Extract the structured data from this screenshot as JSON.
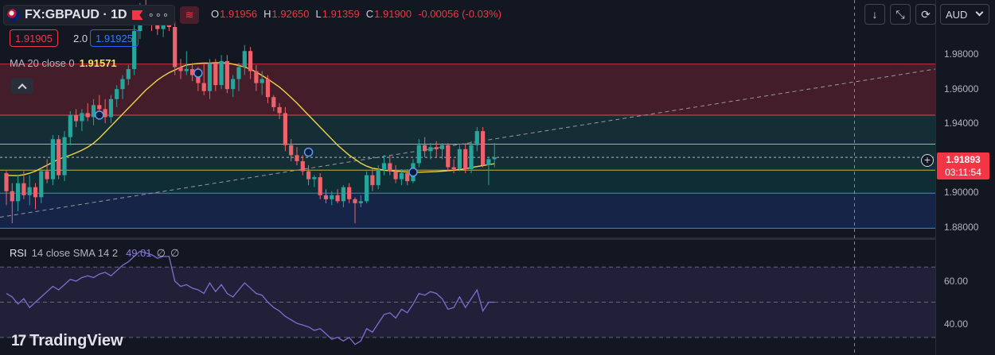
{
  "header": {
    "symbol": "FX:GBPAUD · 1D",
    "more": "∘∘∘",
    "wave": "≋",
    "ohlc": [
      {
        "key": "O",
        "value": "1.91956"
      },
      {
        "key": "H",
        "value": "1.92650"
      },
      {
        "key": "L",
        "value": "1.91359"
      },
      {
        "key": "C",
        "value": "1.91900"
      },
      {
        "key": "",
        "value": "-0.00056 (-0.03%)"
      }
    ]
  },
  "trade": {
    "sell": "1.91905",
    "spread": "2.0",
    "buy": "1.91925"
  },
  "ma_legend": {
    "label": "MA 20 close 0",
    "value": "1.91571"
  },
  "rsi_legend": {
    "title": "RSI",
    "params": "14 close SMA 14 2",
    "value": "49.01",
    "extra1": "∅",
    "extra2": "∅"
  },
  "toolbar": {
    "down": "↓",
    "fullscreen": "⤡",
    "screenshot": "⟳",
    "currency": "AUD"
  },
  "price_axis": {
    "ticks": [
      "1.98000",
      "1.96000",
      "1.94000",
      "1.90000",
      "1.88000"
    ],
    "last_price": "1.91893",
    "countdown": "03:11:54"
  },
  "rsi_axis": {
    "ticks": [
      "60.00",
      "40.00"
    ]
  },
  "logo": {
    "mark": "17",
    "text": "TradingView"
  },
  "colors": {
    "up": "#26a69a",
    "down": "#f0626b",
    "ma": "#f0d44a",
    "rsi": "#7e6fd1",
    "bg": "#131722"
  },
  "chart_data": {
    "type": "candlestick",
    "symbol": "FX:GBPAUD",
    "interval": "1D",
    "ylim": [
      1.8785,
      1.9975
    ],
    "candles": [
      [
        1.911,
        1.912,
        1.895,
        1.902
      ],
      [
        1.902,
        1.906,
        1.886,
        1.897
      ],
      [
        1.897,
        1.91,
        1.892,
        1.906
      ],
      [
        1.906,
        1.912,
        1.898,
        1.9
      ],
      [
        1.9,
        1.91,
        1.895,
        1.904
      ],
      [
        1.904,
        1.906,
        1.893,
        1.899
      ],
      [
        1.899,
        1.914,
        1.896,
        1.912
      ],
      [
        1.912,
        1.918,
        1.906,
        1.908
      ],
      [
        1.908,
        1.93,
        1.905,
        1.928
      ],
      [
        1.928,
        1.93,
        1.908,
        1.91
      ],
      [
        1.91,
        1.932,
        1.907,
        1.929
      ],
      [
        1.929,
        1.942,
        1.925,
        1.94
      ],
      [
        1.94,
        1.943,
        1.934,
        1.937
      ],
      [
        1.937,
        1.943,
        1.932,
        1.941
      ],
      [
        1.941,
        1.946,
        1.937,
        1.939
      ],
      [
        1.939,
        1.948,
        1.935,
        1.945
      ],
      [
        1.945,
        1.95,
        1.94,
        1.943
      ],
      [
        1.943,
        1.948,
        1.936,
        1.939
      ],
      [
        1.939,
        1.95,
        1.936,
        1.948
      ],
      [
        1.948,
        1.955,
        1.944,
        1.953
      ],
      [
        1.953,
        1.96,
        1.948,
        1.958
      ],
      [
        1.958,
        1.965,
        1.955,
        1.963
      ],
      [
        1.963,
        1.985,
        1.96,
        1.982
      ],
      [
        1.982,
        1.996,
        1.978,
        1.992
      ],
      [
        1.992,
        1.998,
        1.986,
        1.989
      ],
      [
        1.989,
        1.994,
        1.982,
        1.986
      ],
      [
        1.986,
        1.994,
        1.98,
        1.983
      ],
      [
        1.983,
        1.992,
        1.979,
        1.989
      ],
      [
        1.989,
        1.993,
        1.982,
        1.984
      ],
      [
        1.984,
        1.987,
        1.96,
        1.964
      ],
      [
        1.964,
        1.968,
        1.958,
        1.962
      ],
      [
        1.962,
        1.972,
        1.96,
        1.963
      ],
      [
        1.963,
        1.966,
        1.957,
        1.96
      ],
      [
        1.96,
        1.964,
        1.952,
        1.956
      ],
      [
        1.956,
        1.966,
        1.95,
        1.952
      ],
      [
        1.952,
        1.968,
        1.948,
        1.966
      ],
      [
        1.966,
        1.968,
        1.952,
        1.955
      ],
      [
        1.955,
        1.97,
        1.953,
        1.967
      ],
      [
        1.967,
        1.97,
        1.951,
        1.953
      ],
      [
        1.953,
        1.96,
        1.949,
        1.958
      ],
      [
        1.958,
        1.966,
        1.952,
        1.964
      ],
      [
        1.964,
        1.975,
        1.96,
        1.972
      ],
      [
        1.972,
        1.974,
        1.958,
        1.962
      ],
      [
        1.962,
        1.965,
        1.952,
        1.956
      ],
      [
        1.956,
        1.962,
        1.95,
        1.958
      ],
      [
        1.958,
        1.96,
        1.946,
        1.949
      ],
      [
        1.949,
        1.95,
        1.942,
        1.944
      ],
      [
        1.944,
        1.946,
        1.938,
        1.941
      ],
      [
        1.941,
        1.944,
        1.922,
        1.925
      ],
      [
        1.925,
        1.928,
        1.917,
        1.92
      ],
      [
        1.92,
        1.924,
        1.915,
        1.917
      ],
      [
        1.917,
        1.92,
        1.91,
        1.912
      ],
      [
        1.912,
        1.915,
        1.905,
        1.908
      ],
      [
        1.908,
        1.91,
        1.904,
        1.909
      ],
      [
        1.909,
        1.911,
        1.898,
        1.9
      ],
      [
        1.9,
        1.903,
        1.896,
        1.898
      ],
      [
        1.898,
        1.902,
        1.895,
        1.9
      ],
      [
        1.9,
        1.903,
        1.896,
        1.897
      ],
      [
        1.897,
        1.905,
        1.894,
        1.904
      ],
      [
        1.904,
        1.906,
        1.896,
        1.898
      ],
      [
        1.898,
        1.899,
        1.886,
        1.896
      ],
      [
        1.896,
        1.9,
        1.894,
        1.897
      ],
      [
        1.897,
        1.912,
        1.896,
        1.91
      ],
      [
        1.91,
        1.913,
        1.902,
        1.905
      ],
      [
        1.905,
        1.915,
        1.903,
        1.913
      ],
      [
        1.913,
        1.92,
        1.91,
        1.916
      ],
      [
        1.916,
        1.92,
        1.91,
        1.912
      ],
      [
        1.912,
        1.915,
        1.906,
        1.908
      ],
      [
        1.908,
        1.913,
        1.905,
        1.911
      ],
      [
        1.911,
        1.913,
        1.905,
        1.907
      ],
      [
        1.907,
        1.918,
        1.906,
        1.916
      ],
      [
        1.916,
        1.928,
        1.914,
        1.925
      ],
      [
        1.925,
        1.929,
        1.919,
        1.922
      ],
      [
        1.922,
        1.926,
        1.918,
        1.924
      ],
      [
        1.924,
        1.927,
        1.919,
        1.923
      ],
      [
        1.923,
        1.926,
        1.918,
        1.925
      ],
      [
        1.925,
        1.926,
        1.912,
        1.914
      ],
      [
        1.914,
        1.918,
        1.911,
        1.913
      ],
      [
        1.913,
        1.925,
        1.912,
        1.923
      ],
      [
        1.923,
        1.926,
        1.911,
        1.913
      ],
      [
        1.913,
        1.927,
        1.911,
        1.925
      ],
      [
        1.925,
        1.934,
        1.922,
        1.932
      ],
      [
        1.932,
        1.934,
        1.914,
        1.915
      ],
      [
        1.915,
        1.919,
        1.905,
        1.918
      ],
      [
        1.918,
        1.926,
        1.914,
        1.919
      ]
    ],
    "ma20": [
      1.91,
      1.9098,
      1.9098,
      1.9102,
      1.911,
      1.912,
      1.9135,
      1.915,
      1.9165,
      1.918,
      1.919,
      1.92,
      1.9212,
      1.9225,
      1.924,
      1.926,
      1.9285,
      1.9315,
      1.9345,
      1.9375,
      1.9405,
      1.9435,
      1.9465,
      1.9495,
      1.9525,
      1.955,
      1.9575,
      1.9595,
      1.9612,
      1.9625,
      1.964,
      1.965,
      1.9655,
      1.9658,
      1.966,
      1.966,
      1.9662,
      1.9662,
      1.966,
      1.9655,
      1.9648,
      1.964,
      1.963,
      1.9615,
      1.9598,
      1.958,
      1.956,
      1.954,
      1.9515,
      1.9488,
      1.946,
      1.943,
      1.94,
      1.937,
      1.934,
      1.931,
      1.928,
      1.925,
      1.9225,
      1.92,
      1.918,
      1.916,
      1.9145,
      1.9135,
      1.913,
      1.9125,
      1.9122,
      1.912,
      1.9118,
      1.9116,
      1.9115,
      1.9115,
      1.9116,
      1.9117,
      1.9118,
      1.912,
      1.9122,
      1.9125,
      1.9128,
      1.9132,
      1.9138,
      1.9143,
      1.9148,
      1.9153,
      1.9157
    ],
    "rsi": [
      55,
      53,
      49,
      52,
      47,
      50,
      53,
      56,
      59,
      57,
      60,
      63,
      62,
      64,
      65,
      64,
      66,
      67,
      65,
      68,
      71,
      73,
      76,
      79,
      78,
      77,
      75,
      76,
      76,
      62,
      59,
      60,
      58,
      57,
      55,
      61,
      56,
      60,
      55,
      53,
      57,
      61,
      58,
      55,
      54,
      50,
      47,
      45,
      42,
      40,
      38,
      37,
      36,
      34,
      35,
      32,
      29,
      30,
      28,
      30,
      26,
      28,
      35,
      33,
      38,
      43,
      44,
      41,
      46,
      44,
      49,
      55,
      54,
      56,
      55,
      52,
      46,
      47,
      53,
      47,
      52,
      57,
      45,
      50,
      50
    ],
    "support_resistance": [
      {
        "from": 1.94,
        "to": 1.9655,
        "zone": "resistance"
      },
      {
        "from": 1.9125,
        "to": 1.94,
        "zone": "mid"
      },
      {
        "from": 1.901,
        "to": 1.9125,
        "zone": "support"
      },
      {
        "from": 1.8835,
        "to": 1.901,
        "zone": "lower"
      }
    ],
    "trendline": {
      "from": [
        0,
        1.889
      ],
      "to": [
        87,
        1.963
      ]
    },
    "rsi_ylim": [
      20,
      85
    ],
    "rsi_levels": [
      70,
      50,
      30
    ]
  }
}
